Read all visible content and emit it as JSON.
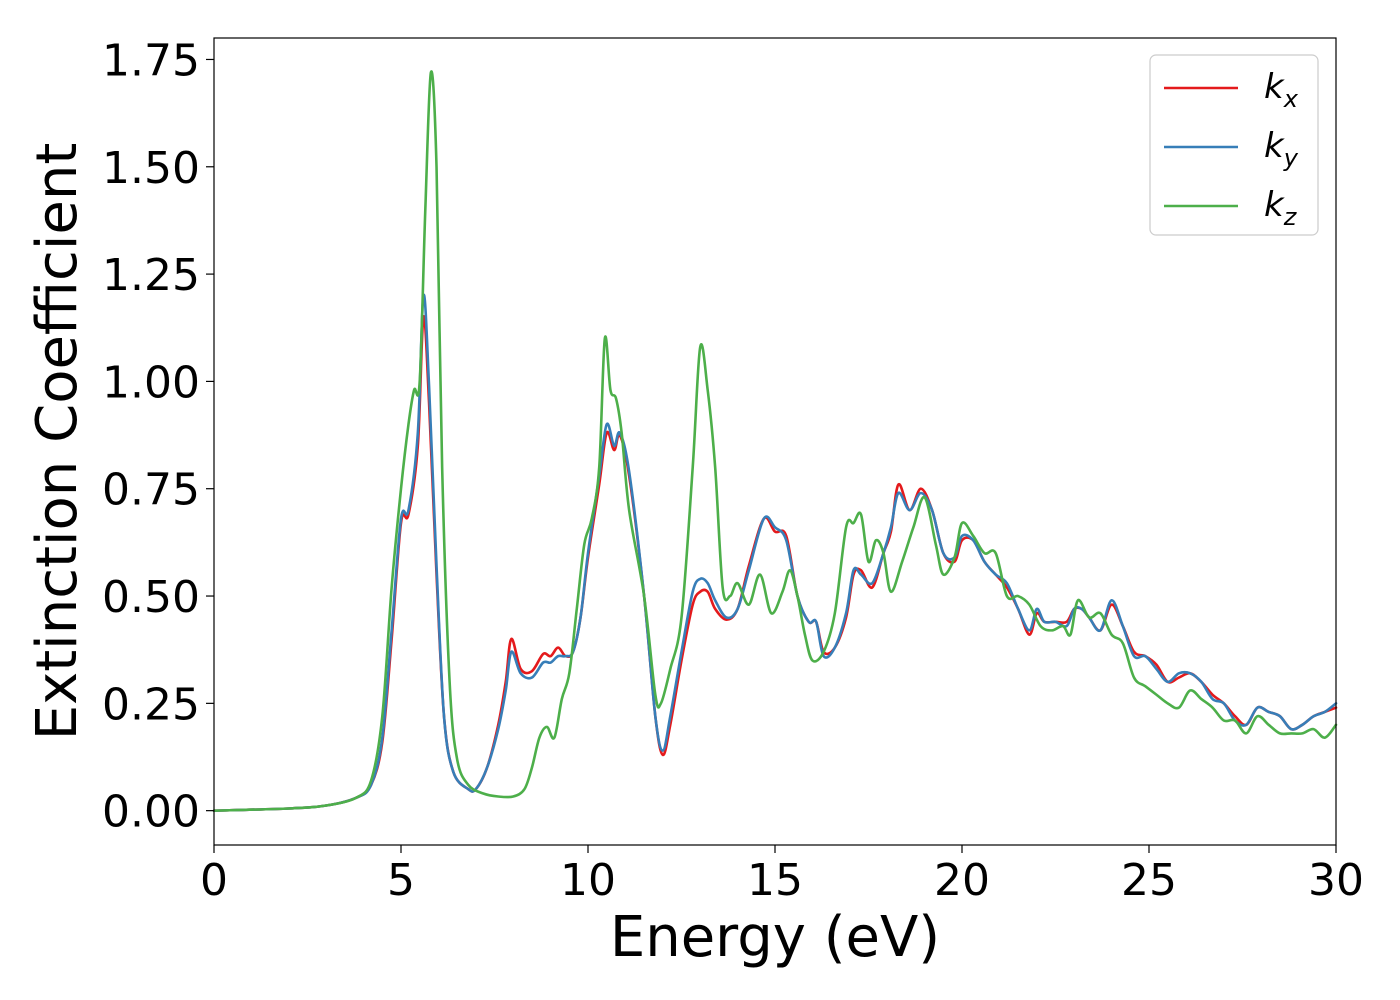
{
  "chart_data": {
    "type": "line",
    "xlabel": "Energy (eV)",
    "ylabel": "Extinction Coefficient",
    "xlim": [
      0,
      30
    ],
    "ylim": [
      -0.08,
      1.8
    ],
    "xticks": [
      "0",
      "5",
      "10",
      "15",
      "20",
      "25",
      "30"
    ],
    "yticks": [
      "0.00",
      "0.25",
      "0.50",
      "0.75",
      "1.00",
      "1.25",
      "1.50",
      "1.75"
    ],
    "grid": false,
    "legend_position": "top-right",
    "series": [
      {
        "name": "k",
        "subscript": "x",
        "color": "#e41a1c",
        "points": [
          [
            0,
            0
          ],
          [
            2,
            0.005
          ],
          [
            3,
            0.012
          ],
          [
            3.8,
            0.03
          ],
          [
            4.2,
            0.06
          ],
          [
            4.5,
            0.16
          ],
          [
            4.75,
            0.4
          ],
          [
            5.0,
            0.67
          ],
          [
            5.2,
            0.69
          ],
          [
            5.45,
            0.85
          ],
          [
            5.6,
            1.15
          ],
          [
            5.75,
            0.95
          ],
          [
            5.95,
            0.55
          ],
          [
            6.15,
            0.22
          ],
          [
            6.4,
            0.09
          ],
          [
            6.8,
            0.05
          ],
          [
            7.0,
            0.05
          ],
          [
            7.3,
            0.1
          ],
          [
            7.6,
            0.2
          ],
          [
            7.8,
            0.3
          ],
          [
            7.95,
            0.4
          ],
          [
            8.2,
            0.33
          ],
          [
            8.5,
            0.325
          ],
          [
            8.8,
            0.365
          ],
          [
            9.0,
            0.36
          ],
          [
            9.2,
            0.38
          ],
          [
            9.4,
            0.36
          ],
          [
            9.6,
            0.37
          ],
          [
            9.8,
            0.45
          ],
          [
            10.0,
            0.59
          ],
          [
            10.3,
            0.76
          ],
          [
            10.5,
            0.88
          ],
          [
            10.7,
            0.84
          ],
          [
            10.85,
            0.875
          ],
          [
            11.1,
            0.78
          ],
          [
            11.5,
            0.5
          ],
          [
            11.8,
            0.22
          ],
          [
            12.0,
            0.13
          ],
          [
            12.2,
            0.2
          ],
          [
            12.5,
            0.35
          ],
          [
            12.8,
            0.48
          ],
          [
            13.0,
            0.51
          ],
          [
            13.2,
            0.51
          ],
          [
            13.4,
            0.47
          ],
          [
            13.7,
            0.445
          ],
          [
            14.0,
            0.47
          ],
          [
            14.3,
            0.57
          ],
          [
            14.7,
            0.68
          ],
          [
            15.0,
            0.65
          ],
          [
            15.3,
            0.64
          ],
          [
            15.6,
            0.5
          ],
          [
            15.9,
            0.44
          ],
          [
            16.1,
            0.44
          ],
          [
            16.3,
            0.37
          ],
          [
            16.6,
            0.38
          ],
          [
            16.9,
            0.45
          ],
          [
            17.1,
            0.55
          ],
          [
            17.3,
            0.56
          ],
          [
            17.6,
            0.52
          ],
          [
            17.9,
            0.6
          ],
          [
            18.1,
            0.65
          ],
          [
            18.3,
            0.76
          ],
          [
            18.6,
            0.7
          ],
          [
            18.9,
            0.75
          ],
          [
            19.2,
            0.7
          ],
          [
            19.5,
            0.6
          ],
          [
            19.8,
            0.58
          ],
          [
            20.0,
            0.63
          ],
          [
            20.3,
            0.63
          ],
          [
            20.6,
            0.58
          ],
          [
            20.9,
            0.55
          ],
          [
            21.2,
            0.52
          ],
          [
            21.5,
            0.47
          ],
          [
            21.8,
            0.41
          ],
          [
            22.0,
            0.46
          ],
          [
            22.2,
            0.44
          ],
          [
            22.5,
            0.44
          ],
          [
            22.8,
            0.44
          ],
          [
            23.0,
            0.47
          ],
          [
            23.2,
            0.47
          ],
          [
            23.4,
            0.45
          ],
          [
            23.7,
            0.42
          ],
          [
            24.0,
            0.48
          ],
          [
            24.3,
            0.43
          ],
          [
            24.6,
            0.37
          ],
          [
            24.9,
            0.36
          ],
          [
            25.2,
            0.34
          ],
          [
            25.5,
            0.3
          ],
          [
            25.8,
            0.31
          ],
          [
            26.1,
            0.32
          ],
          [
            26.4,
            0.3
          ],
          [
            26.7,
            0.27
          ],
          [
            27.0,
            0.25
          ],
          [
            27.3,
            0.22
          ],
          [
            27.6,
            0.2
          ],
          [
            27.9,
            0.24
          ],
          [
            28.2,
            0.23
          ],
          [
            28.5,
            0.22
          ],
          [
            28.8,
            0.19
          ],
          [
            29.1,
            0.2
          ],
          [
            29.4,
            0.22
          ],
          [
            29.7,
            0.23
          ],
          [
            30,
            0.24
          ]
        ]
      },
      {
        "name": "k",
        "subscript": "y",
        "color": "#377eb8",
        "points": [
          [
            0,
            0
          ],
          [
            2,
            0.005
          ],
          [
            3,
            0.012
          ],
          [
            3.8,
            0.03
          ],
          [
            4.2,
            0.06
          ],
          [
            4.5,
            0.17
          ],
          [
            4.75,
            0.42
          ],
          [
            5.0,
            0.68
          ],
          [
            5.2,
            0.7
          ],
          [
            5.45,
            0.88
          ],
          [
            5.6,
            1.2
          ],
          [
            5.75,
            0.99
          ],
          [
            5.95,
            0.57
          ],
          [
            6.15,
            0.22
          ],
          [
            6.4,
            0.09
          ],
          [
            6.8,
            0.05
          ],
          [
            7.0,
            0.05
          ],
          [
            7.3,
            0.1
          ],
          [
            7.6,
            0.19
          ],
          [
            7.8,
            0.28
          ],
          [
            7.95,
            0.37
          ],
          [
            8.2,
            0.32
          ],
          [
            8.5,
            0.31
          ],
          [
            8.8,
            0.345
          ],
          [
            9.0,
            0.345
          ],
          [
            9.2,
            0.36
          ],
          [
            9.4,
            0.36
          ],
          [
            9.6,
            0.37
          ],
          [
            9.8,
            0.45
          ],
          [
            10.0,
            0.6
          ],
          [
            10.3,
            0.78
          ],
          [
            10.5,
            0.9
          ],
          [
            10.7,
            0.85
          ],
          [
            10.85,
            0.88
          ],
          [
            11.1,
            0.79
          ],
          [
            11.5,
            0.5
          ],
          [
            11.8,
            0.22
          ],
          [
            12.0,
            0.14
          ],
          [
            12.2,
            0.22
          ],
          [
            12.5,
            0.37
          ],
          [
            12.8,
            0.51
          ],
          [
            13.0,
            0.54
          ],
          [
            13.2,
            0.53
          ],
          [
            13.4,
            0.49
          ],
          [
            13.7,
            0.45
          ],
          [
            14.0,
            0.47
          ],
          [
            14.3,
            0.56
          ],
          [
            14.7,
            0.68
          ],
          [
            15.0,
            0.66
          ],
          [
            15.3,
            0.63
          ],
          [
            15.6,
            0.5
          ],
          [
            15.9,
            0.44
          ],
          [
            16.1,
            0.44
          ],
          [
            16.3,
            0.36
          ],
          [
            16.6,
            0.38
          ],
          [
            16.9,
            0.46
          ],
          [
            17.1,
            0.56
          ],
          [
            17.3,
            0.55
          ],
          [
            17.6,
            0.53
          ],
          [
            17.9,
            0.6
          ],
          [
            18.1,
            0.66
          ],
          [
            18.3,
            0.74
          ],
          [
            18.6,
            0.7
          ],
          [
            18.9,
            0.74
          ],
          [
            19.2,
            0.7
          ],
          [
            19.5,
            0.6
          ],
          [
            19.8,
            0.59
          ],
          [
            20.0,
            0.64
          ],
          [
            20.3,
            0.63
          ],
          [
            20.6,
            0.58
          ],
          [
            20.9,
            0.55
          ],
          [
            21.2,
            0.53
          ],
          [
            21.5,
            0.47
          ],
          [
            21.8,
            0.42
          ],
          [
            22.0,
            0.47
          ],
          [
            22.2,
            0.44
          ],
          [
            22.5,
            0.44
          ],
          [
            22.8,
            0.43
          ],
          [
            23.0,
            0.47
          ],
          [
            23.2,
            0.47
          ],
          [
            23.4,
            0.45
          ],
          [
            23.7,
            0.42
          ],
          [
            24.0,
            0.49
          ],
          [
            24.3,
            0.43
          ],
          [
            24.6,
            0.36
          ],
          [
            24.9,
            0.36
          ],
          [
            25.2,
            0.33
          ],
          [
            25.5,
            0.3
          ],
          [
            25.8,
            0.32
          ],
          [
            26.1,
            0.32
          ],
          [
            26.4,
            0.3
          ],
          [
            26.7,
            0.26
          ],
          [
            27.0,
            0.25
          ],
          [
            27.3,
            0.21
          ],
          [
            27.6,
            0.2
          ],
          [
            27.9,
            0.24
          ],
          [
            28.2,
            0.23
          ],
          [
            28.5,
            0.22
          ],
          [
            28.8,
            0.19
          ],
          [
            29.1,
            0.2
          ],
          [
            29.4,
            0.22
          ],
          [
            29.7,
            0.23
          ],
          [
            30,
            0.25
          ]
        ]
      },
      {
        "name": "k",
        "subscript": "z",
        "color": "#4daf4a",
        "points": [
          [
            0,
            0
          ],
          [
            2,
            0.005
          ],
          [
            3,
            0.012
          ],
          [
            3.8,
            0.03
          ],
          [
            4.2,
            0.07
          ],
          [
            4.5,
            0.22
          ],
          [
            4.75,
            0.52
          ],
          [
            5.0,
            0.75
          ],
          [
            5.2,
            0.9
          ],
          [
            5.35,
            0.98
          ],
          [
            5.5,
            1.0
          ],
          [
            5.65,
            1.4
          ],
          [
            5.8,
            1.72
          ],
          [
            5.95,
            1.5
          ],
          [
            6.1,
            0.8
          ],
          [
            6.3,
            0.3
          ],
          [
            6.5,
            0.12
          ],
          [
            6.8,
            0.06
          ],
          [
            7.2,
            0.04
          ],
          [
            7.6,
            0.033
          ],
          [
            8.0,
            0.033
          ],
          [
            8.3,
            0.05
          ],
          [
            8.5,
            0.1
          ],
          [
            8.7,
            0.17
          ],
          [
            8.9,
            0.195
          ],
          [
            9.1,
            0.17
          ],
          [
            9.3,
            0.26
          ],
          [
            9.5,
            0.32
          ],
          [
            9.7,
            0.47
          ],
          [
            9.9,
            0.62
          ],
          [
            10.1,
            0.68
          ],
          [
            10.3,
            0.8
          ],
          [
            10.45,
            1.1
          ],
          [
            10.6,
            0.98
          ],
          [
            10.75,
            0.96
          ],
          [
            10.9,
            0.88
          ],
          [
            11.1,
            0.7
          ],
          [
            11.5,
            0.5
          ],
          [
            11.8,
            0.27
          ],
          [
            11.95,
            0.25
          ],
          [
            12.2,
            0.33
          ],
          [
            12.5,
            0.45
          ],
          [
            12.8,
            0.8
          ],
          [
            13.0,
            1.08
          ],
          [
            13.2,
            0.98
          ],
          [
            13.4,
            0.8
          ],
          [
            13.6,
            0.52
          ],
          [
            13.8,
            0.5
          ],
          [
            14.0,
            0.53
          ],
          [
            14.3,
            0.48
          ],
          [
            14.6,
            0.55
          ],
          [
            14.9,
            0.46
          ],
          [
            15.2,
            0.51
          ],
          [
            15.4,
            0.56
          ],
          [
            15.6,
            0.5
          ],
          [
            15.8,
            0.41
          ],
          [
            16.0,
            0.35
          ],
          [
            16.3,
            0.37
          ],
          [
            16.6,
            0.46
          ],
          [
            16.9,
            0.66
          ],
          [
            17.1,
            0.67
          ],
          [
            17.3,
            0.69
          ],
          [
            17.5,
            0.58
          ],
          [
            17.7,
            0.63
          ],
          [
            17.9,
            0.6
          ],
          [
            18.1,
            0.51
          ],
          [
            18.4,
            0.58
          ],
          [
            18.7,
            0.66
          ],
          [
            19.0,
            0.73
          ],
          [
            19.3,
            0.62
          ],
          [
            19.5,
            0.55
          ],
          [
            19.8,
            0.59
          ],
          [
            20.0,
            0.67
          ],
          [
            20.3,
            0.64
          ],
          [
            20.6,
            0.6
          ],
          [
            20.9,
            0.6
          ],
          [
            21.2,
            0.5
          ],
          [
            21.5,
            0.5
          ],
          [
            21.8,
            0.48
          ],
          [
            22.1,
            0.43
          ],
          [
            22.4,
            0.42
          ],
          [
            22.7,
            0.43
          ],
          [
            22.9,
            0.41
          ],
          [
            23.1,
            0.49
          ],
          [
            23.4,
            0.45
          ],
          [
            23.7,
            0.46
          ],
          [
            24.0,
            0.41
          ],
          [
            24.3,
            0.39
          ],
          [
            24.6,
            0.31
          ],
          [
            24.9,
            0.29
          ],
          [
            25.2,
            0.27
          ],
          [
            25.5,
            0.25
          ],
          [
            25.8,
            0.24
          ],
          [
            26.1,
            0.28
          ],
          [
            26.4,
            0.26
          ],
          [
            26.7,
            0.24
          ],
          [
            27.0,
            0.21
          ],
          [
            27.3,
            0.21
          ],
          [
            27.6,
            0.18
          ],
          [
            27.9,
            0.22
          ],
          [
            28.2,
            0.2
          ],
          [
            28.5,
            0.18
          ],
          [
            28.8,
            0.18
          ],
          [
            29.1,
            0.18
          ],
          [
            29.4,
            0.19
          ],
          [
            29.7,
            0.17
          ],
          [
            30,
            0.2
          ]
        ]
      }
    ]
  }
}
